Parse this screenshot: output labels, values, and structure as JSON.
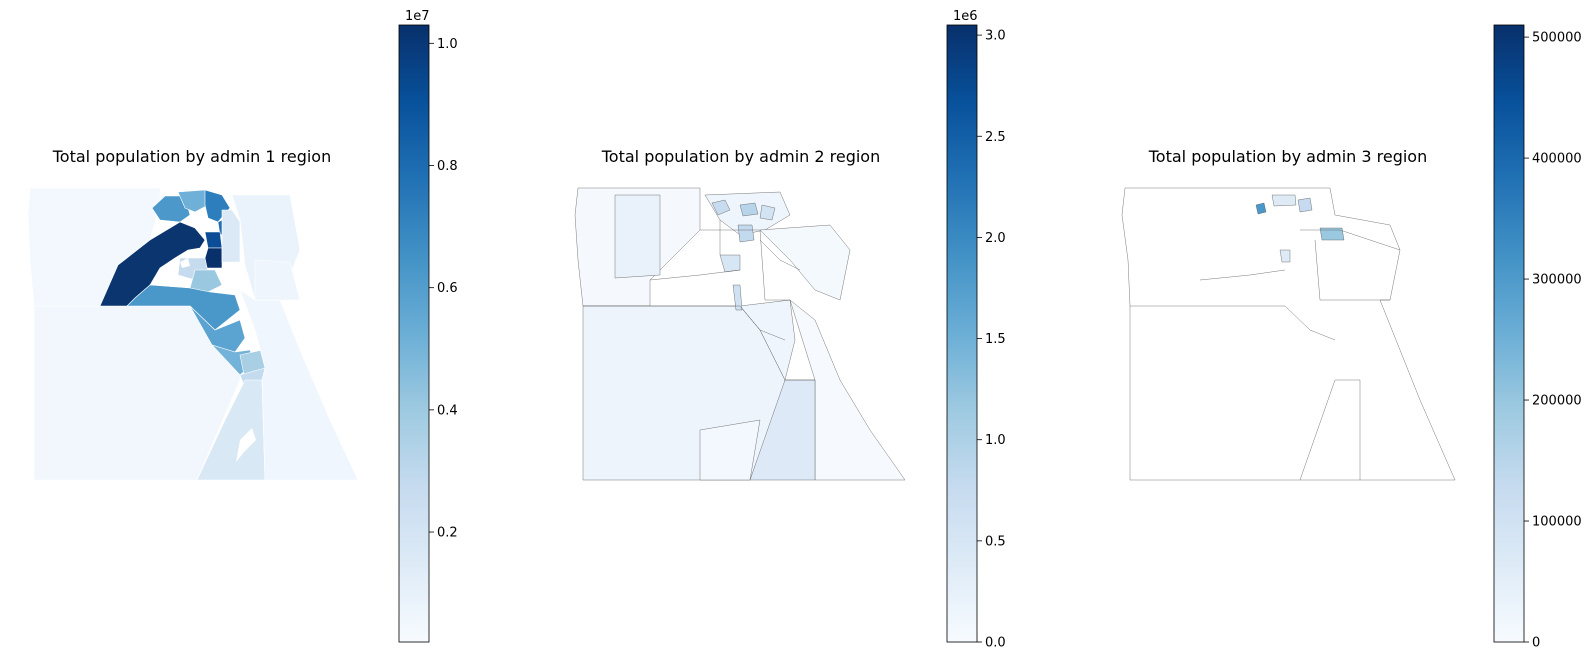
{
  "figure": {
    "colormap": "Blues",
    "colormap_stops": [
      "#f7fbff",
      "#deebf7",
      "#c6dbef",
      "#9ecae1",
      "#6baed6",
      "#4292c6",
      "#2171b5",
      "#08519c",
      "#08306b"
    ],
    "boundary_color": "#555555"
  },
  "panels": [
    {
      "title": "Total population by admin 1 region",
      "colorbar": {
        "min": 0.02,
        "max": 1.03,
        "multiplier": "1e7",
        "ticks": [
          {
            "value": 0.2,
            "label": "0.2"
          },
          {
            "value": 0.4,
            "label": "0.4"
          },
          {
            "value": 0.6,
            "label": "0.6"
          },
          {
            "value": 0.8,
            "label": "0.8"
          },
          {
            "value": 1.0,
            "label": "1.0"
          }
        ]
      }
    },
    {
      "title": "Total population by admin 2 region",
      "colorbar": {
        "min": 0.0,
        "max": 3.05,
        "multiplier": "1e6",
        "ticks": [
          {
            "value": 0.0,
            "label": "0.0"
          },
          {
            "value": 0.5,
            "label": "0.5"
          },
          {
            "value": 1.0,
            "label": "1.0"
          },
          {
            "value": 1.5,
            "label": "1.5"
          },
          {
            "value": 2.0,
            "label": "2.0"
          },
          {
            "value": 2.5,
            "label": "2.5"
          },
          {
            "value": 3.0,
            "label": "3.0"
          }
        ]
      }
    },
    {
      "title": "Total population by admin 3 region",
      "colorbar": {
        "min": 0,
        "max": 510000,
        "multiplier": "",
        "ticks": [
          {
            "value": 0,
            "label": "0"
          },
          {
            "value": 100000,
            "label": "100000"
          },
          {
            "value": 200000,
            "label": "200000"
          },
          {
            "value": 300000,
            "label": "300000"
          },
          {
            "value": 400000,
            "label": "400000"
          },
          {
            "value": 500000,
            "label": "500000"
          }
        ]
      }
    }
  ]
}
